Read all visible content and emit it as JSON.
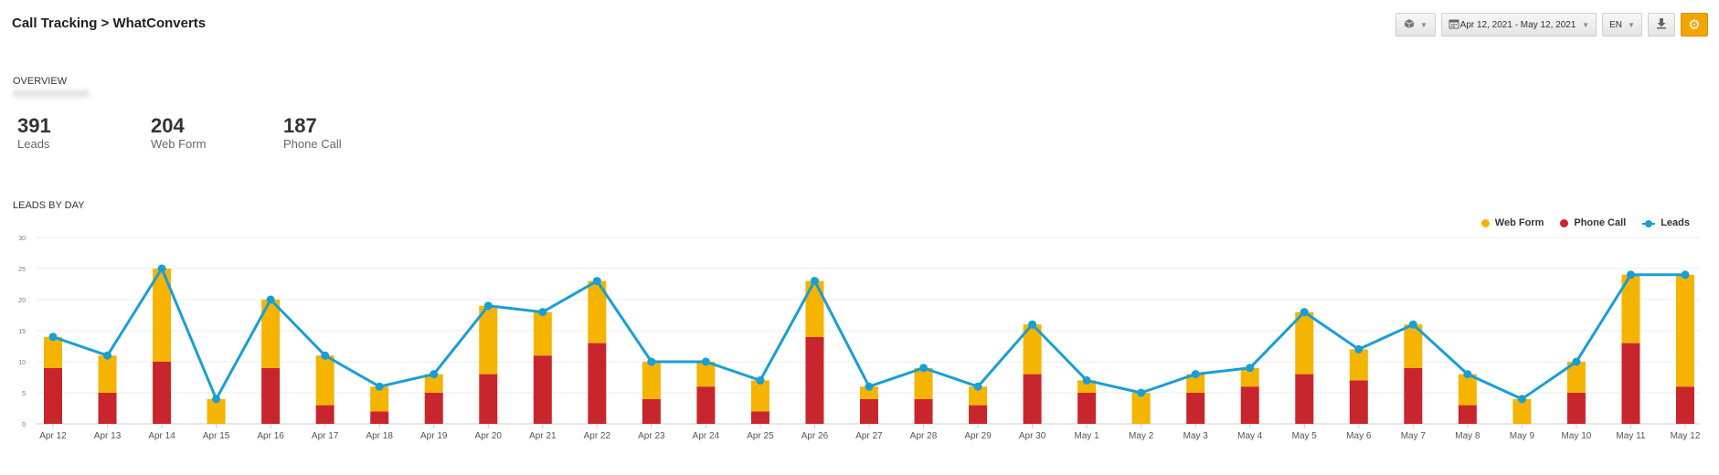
{
  "header": {
    "title": "Call Tracking > WhatConverts",
    "date_range": "Apr 12, 2021 - May 12, 2021",
    "language": "EN"
  },
  "overview": {
    "label": "OVERVIEW",
    "stats": [
      {
        "value": "391",
        "label": "Leads"
      },
      {
        "value": "204",
        "label": "Web Form"
      },
      {
        "value": "187",
        "label": "Phone Call"
      }
    ]
  },
  "section": {
    "label": "LEADS BY DAY"
  },
  "colors": {
    "web_form": "#f5b400",
    "phone_call": "#c9252c",
    "leads": "#1a9ed6",
    "gear": "#f0a500"
  },
  "icons": {
    "cube": "cube-icon",
    "calendar": "calendar-icon",
    "download": "download-icon",
    "gear": "gear-icon"
  },
  "chart_data": {
    "type": "bar",
    "stacked": true,
    "categories": [
      "Apr 12",
      "Apr 13",
      "Apr 14",
      "Apr 15",
      "Apr 16",
      "Apr 17",
      "Apr 18",
      "Apr 19",
      "Apr 20",
      "Apr 21",
      "Apr 22",
      "Apr 23",
      "Apr 24",
      "Apr 25",
      "Apr 26",
      "Apr 27",
      "Apr 28",
      "Apr 29",
      "Apr 30",
      "May 1",
      "May 2",
      "May 3",
      "May 4",
      "May 5",
      "May 6",
      "May 7",
      "May 8",
      "May 9",
      "May 10",
      "May 11",
      "May 12"
    ],
    "series": [
      {
        "name": "Web Form",
        "type": "bar",
        "values": [
          5,
          6,
          15,
          4,
          11,
          8,
          4,
          3,
          11,
          7,
          10,
          6,
          4,
          5,
          9,
          2,
          5,
          3,
          8,
          2,
          5,
          3,
          3,
          10,
          5,
          7,
          5,
          4,
          5,
          11,
          18
        ]
      },
      {
        "name": "Phone Call",
        "type": "bar",
        "values": [
          9,
          5,
          10,
          0,
          9,
          3,
          2,
          5,
          8,
          11,
          13,
          4,
          6,
          2,
          14,
          4,
          4,
          3,
          8,
          5,
          0,
          5,
          6,
          8,
          7,
          9,
          3,
          0,
          5,
          13,
          6
        ]
      },
      {
        "name": "Leads",
        "type": "line",
        "values": [
          14,
          11,
          25,
          4,
          20,
          11,
          6,
          8,
          19,
          18,
          23,
          10,
          10,
          7,
          23,
          6,
          9,
          6,
          16,
          7,
          5,
          8,
          9,
          18,
          12,
          16,
          8,
          4,
          10,
          24,
          24
        ]
      }
    ],
    "ylim": [
      0,
      30
    ],
    "yticks": [
      0,
      5,
      10,
      15,
      20,
      25,
      30
    ],
    "grid": true,
    "legend": "top-right"
  }
}
